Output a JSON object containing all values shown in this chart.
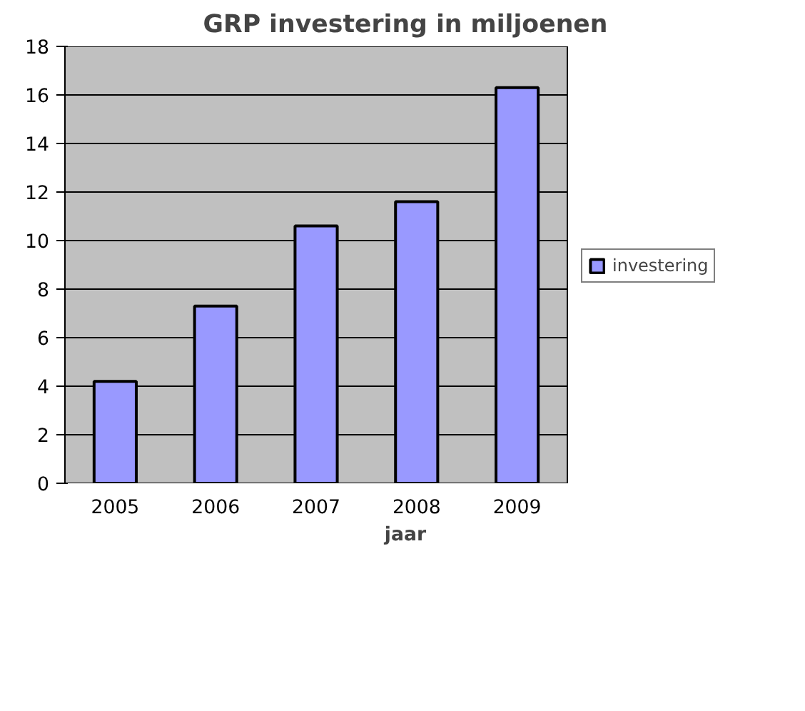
{
  "chart_data": {
    "type": "bar",
    "title": "GRP investering in miljoenen",
    "xlabel": "jaar",
    "categories": [
      "2005",
      "2006",
      "2007",
      "2008",
      "2009"
    ],
    "series": [
      {
        "name": "investering",
        "color": "#9999ff",
        "values": [
          4.2,
          7.3,
          10.6,
          11.6,
          16.3
        ]
      }
    ],
    "ylim": [
      0,
      18
    ],
    "yticks": [
      0,
      2,
      4,
      6,
      8,
      10,
      12,
      14,
      16,
      18
    ],
    "grid": "y",
    "legend": "right"
  }
}
